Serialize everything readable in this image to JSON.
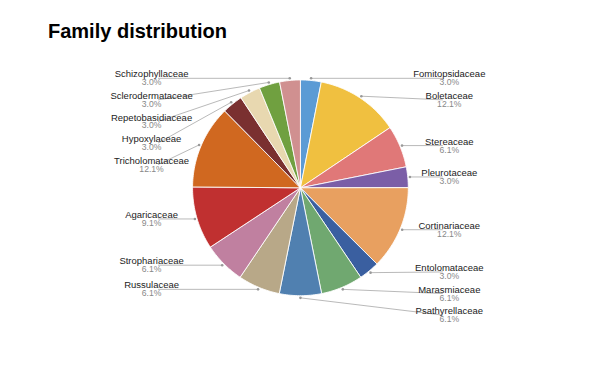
{
  "chart_data": {
    "type": "pie",
    "title": "Family distribution",
    "categories": [
      "Fomitopsidaceae",
      "Boletaceae",
      "Stereaceae",
      "Pleurotaceae",
      "Cortinariaceae",
      "Entolomataceae",
      "Marasmiaceae",
      "Psathyrellaceae",
      "Russulaceae",
      "Strophariaceae",
      "Agaricaceae",
      "Tricholomataceae",
      "Hypoxylaceae",
      "Repetobasidiaceae",
      "Sclerodermataceae",
      "Schizophyllaceae"
    ],
    "values": [
      3.0,
      12.1,
      6.1,
      3.0,
      12.1,
      3.0,
      6.1,
      6.1,
      6.1,
      6.1,
      9.1,
      12.1,
      3.0,
      3.0,
      3.0,
      3.0
    ],
    "value_labels": [
      "3.0%",
      "12.1%",
      "6.1%",
      "3.0%",
      "12.1%",
      "3.0%",
      "6.1%",
      "6.1%",
      "6.1%",
      "6.1%",
      "9.1%",
      "12.1%",
      "3.0%",
      "3.0%",
      "3.0%",
      "3.0%"
    ],
    "colors": [
      "#5b9bd5",
      "#f0c040",
      "#e07878",
      "#7b5ea7",
      "#e8a060",
      "#3a5fa0",
      "#70a870",
      "#5080b0",
      "#b8a888",
      "#c080a0",
      "#c03030",
      "#d06820",
      "#7a3030",
      "#e8d8b0",
      "#70a040",
      "#d09090"
    ],
    "data_labels": true
  }
}
